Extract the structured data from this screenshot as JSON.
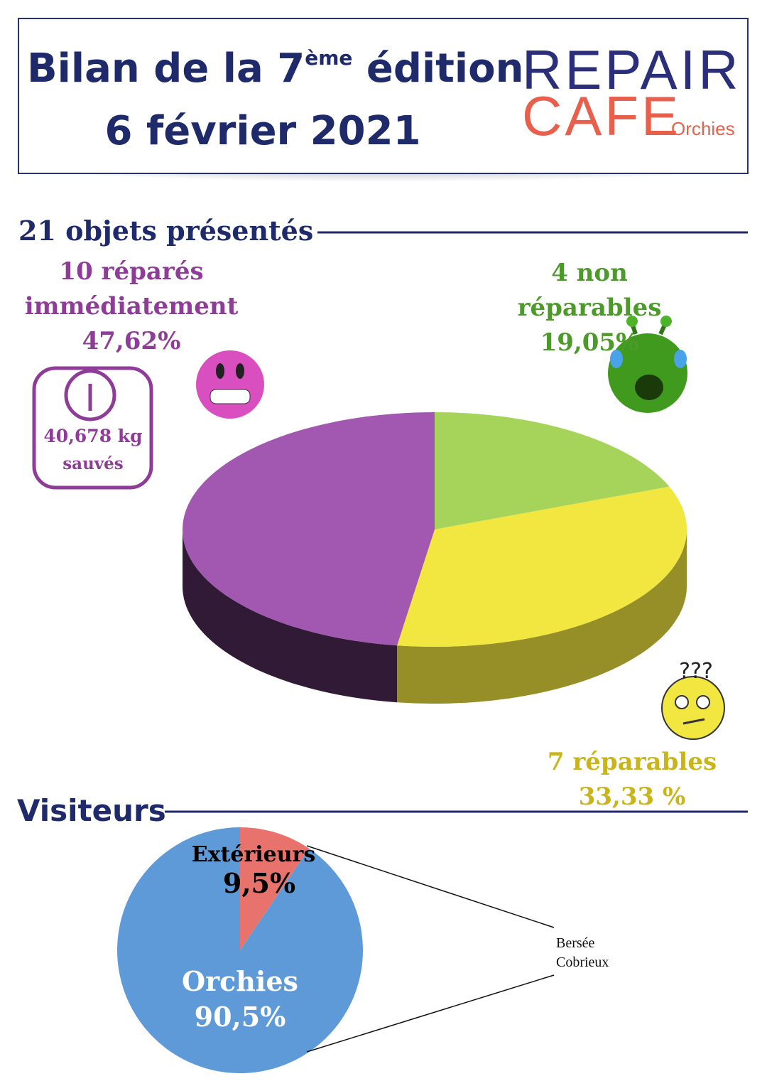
{
  "header": {
    "title_pre": "Bilan de la 7",
    "title_sup": "ème",
    "title_post": " édition",
    "date": "6 février 2021",
    "logo_line1": "REPAIR",
    "logo_line2": "CAFE",
    "logo_place": "Orchies"
  },
  "chart_data": [
    {
      "type": "pie3d",
      "title": "21 objets présentés",
      "categories": [
        "4 non réparables",
        "7 réparables",
        "10 réparés immédiatement"
      ],
      "values": [
        19.05,
        33.33,
        47.62
      ],
      "value_labels": [
        "19,05%",
        "33,33 %",
        "47,62%"
      ],
      "colors": [
        "#a6d45a",
        "#f2e640",
        "#a257b0"
      ],
      "annotations": [
        "40,678 kg",
        "sauvés"
      ]
    },
    {
      "type": "pie",
      "title": "Visiteurs",
      "categories": [
        "Extérieurs",
        "Orchies"
      ],
      "values": [
        9.5,
        90.5
      ],
      "value_labels": [
        "9,5%",
        "90,5%"
      ],
      "colors": [
        "#e8736c",
        "#5f9ad8"
      ],
      "annotations": [
        "Bersée",
        "Cobrieux"
      ]
    }
  ]
}
